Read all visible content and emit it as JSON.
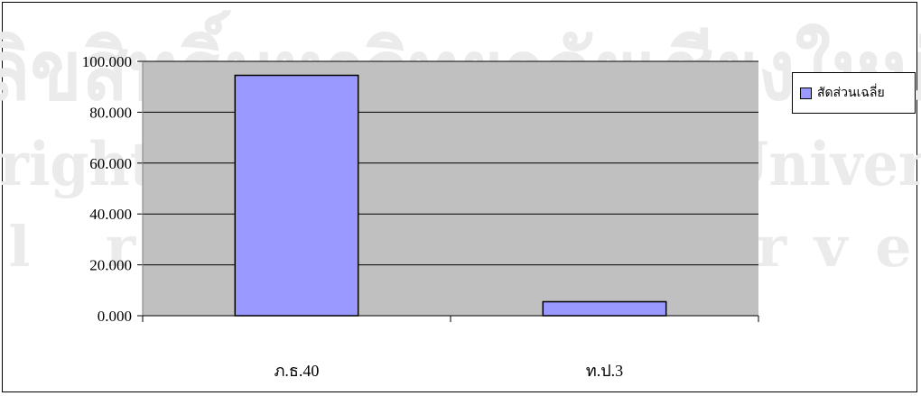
{
  "chart_data": {
    "type": "bar",
    "categories": [
      "ภ.ธ.40",
      "ท.ป.3"
    ],
    "series": [
      {
        "name": "สัดส่วนเฉลี่ย",
        "values": [
          94.5,
          5.5
        ]
      }
    ],
    "ylim": [
      0,
      100
    ],
    "yticks": [
      "0.000",
      "20.000",
      "40.000",
      "60.000",
      "80.000",
      "100.000"
    ],
    "grid": true,
    "legend_position": "right",
    "colors": {
      "bar": "#9999ff",
      "plot_area": "#c0c0c0",
      "gridline": "#000000"
    }
  },
  "watermark": {
    "line1": "ลิขสิทธิ์มหาวิทยาลัยเชียงใหม่",
    "line2": "Copyright © by Chiang Mai University",
    "line3": "All rights reserved"
  }
}
